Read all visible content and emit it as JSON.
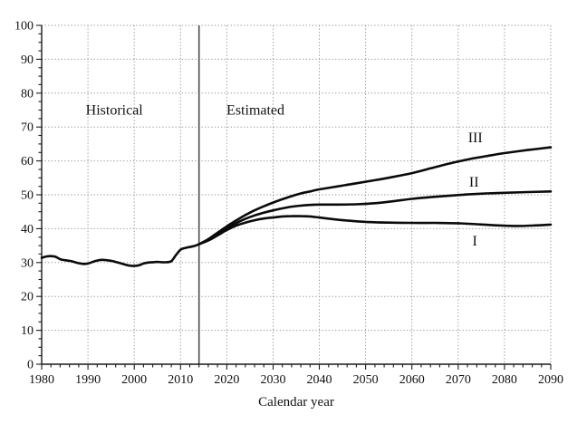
{
  "page": {
    "background": "#ffffff"
  },
  "colors": {
    "line": "#0a0a0a",
    "grid": "#969696",
    "axis": "#1a1a1a",
    "divider": "#4d4d4d",
    "text": "#111111",
    "background": "#ffffff"
  },
  "chart_data": {
    "type": "line",
    "title": "",
    "xlabel": "Calendar year",
    "ylabel": "",
    "xlim": [
      1980,
      2090
    ],
    "ylim": [
      0,
      100
    ],
    "x_ticks": [
      1980,
      1990,
      2000,
      2010,
      2020,
      2030,
      2040,
      2050,
      2060,
      2070,
      2080,
      2090
    ],
    "y_ticks": [
      0,
      10,
      20,
      30,
      40,
      50,
      60,
      70,
      80,
      90,
      100
    ],
    "x_minor_step": 2,
    "y_minor_step": 2.5,
    "grid": "dotted",
    "legend_position": "inline-labels",
    "divider": {
      "year": 2014,
      "style": "solid-vertical-line"
    },
    "annotations": [
      {
        "id": "historical-label",
        "text": "Historical",
        "year": 1995.7,
        "value": 75.0
      },
      {
        "id": "estimated-label",
        "text": "Estimated",
        "year": 2026.2,
        "value": 75.0
      },
      {
        "id": "series-III-label",
        "text": "III",
        "year": 2073.7,
        "value": 66.8
      },
      {
        "id": "series-II-label",
        "text": "II",
        "year": 2073.4,
        "value": 53.7
      },
      {
        "id": "series-I-label",
        "text": "I",
        "year": 2073.6,
        "value": 36.3
      }
    ],
    "series": [
      {
        "name": "Historical",
        "x": [
          1980,
          1981,
          1982,
          1983,
          1984,
          1985,
          1986,
          1987,
          1988,
          1989,
          1990,
          1991,
          1992,
          1993,
          1994,
          1995,
          1996,
          1997,
          1998,
          1999,
          2000,
          2001,
          2002,
          2003,
          2004,
          2005,
          2006,
          2007,
          2008,
          2009,
          2010,
          2011,
          2012,
          2013,
          2014
        ],
        "y": [
          31.4,
          31.8,
          31.9,
          31.7,
          31.0,
          30.7,
          30.5,
          30.2,
          29.8,
          29.6,
          29.7,
          30.2,
          30.6,
          30.8,
          30.7,
          30.5,
          30.2,
          29.8,
          29.4,
          29.1,
          29.0,
          29.2,
          29.7,
          30.0,
          30.1,
          30.2,
          30.1,
          30.1,
          30.4,
          32.2,
          33.8,
          34.3,
          34.6,
          34.9,
          35.4
        ]
      },
      {
        "name": "I",
        "x": [
          2014,
          2016,
          2018,
          2020,
          2022,
          2024,
          2026,
          2028,
          2030,
          2032,
          2034,
          2036,
          2038,
          2040,
          2043,
          2046,
          2050,
          2055,
          2060,
          2065,
          2070,
          2074,
          2078,
          2082,
          2086,
          2090
        ],
        "y": [
          35.4,
          36.5,
          38.0,
          39.6,
          40.9,
          41.8,
          42.5,
          43.0,
          43.3,
          43.6,
          43.7,
          43.7,
          43.6,
          43.3,
          42.8,
          42.4,
          42.0,
          41.8,
          41.7,
          41.7,
          41.6,
          41.3,
          41.0,
          40.8,
          40.9,
          41.2
        ]
      },
      {
        "name": "II",
        "x": [
          2014,
          2016,
          2018,
          2020,
          2022,
          2024,
          2026,
          2028,
          2030,
          2032,
          2034,
          2036,
          2038,
          2040,
          2044,
          2048,
          2052,
          2056,
          2060,
          2064,
          2068,
          2072,
          2076,
          2080,
          2085,
          2090
        ],
        "y": [
          35.4,
          36.7,
          38.4,
          40.1,
          41.6,
          42.9,
          43.9,
          44.7,
          45.4,
          46.0,
          46.5,
          46.8,
          47.0,
          47.1,
          47.1,
          47.2,
          47.5,
          48.1,
          48.8,
          49.3,
          49.7,
          50.1,
          50.4,
          50.6,
          50.8,
          51.0
        ]
      },
      {
        "name": "III",
        "x": [
          2014,
          2016,
          2018,
          2020,
          2022,
          2024,
          2026,
          2028,
          2030,
          2032,
          2034,
          2036,
          2038,
          2040,
          2044,
          2048,
          2052,
          2056,
          2060,
          2064,
          2068,
          2072,
          2076,
          2080,
          2085,
          2090
        ],
        "y": [
          35.4,
          36.9,
          38.8,
          40.7,
          42.4,
          44.0,
          45.4,
          46.6,
          47.7,
          48.7,
          49.6,
          50.4,
          51.0,
          51.6,
          52.5,
          53.4,
          54.3,
          55.3,
          56.4,
          57.8,
          59.2,
          60.4,
          61.4,
          62.3,
          63.2,
          64.0
        ]
      }
    ]
  }
}
